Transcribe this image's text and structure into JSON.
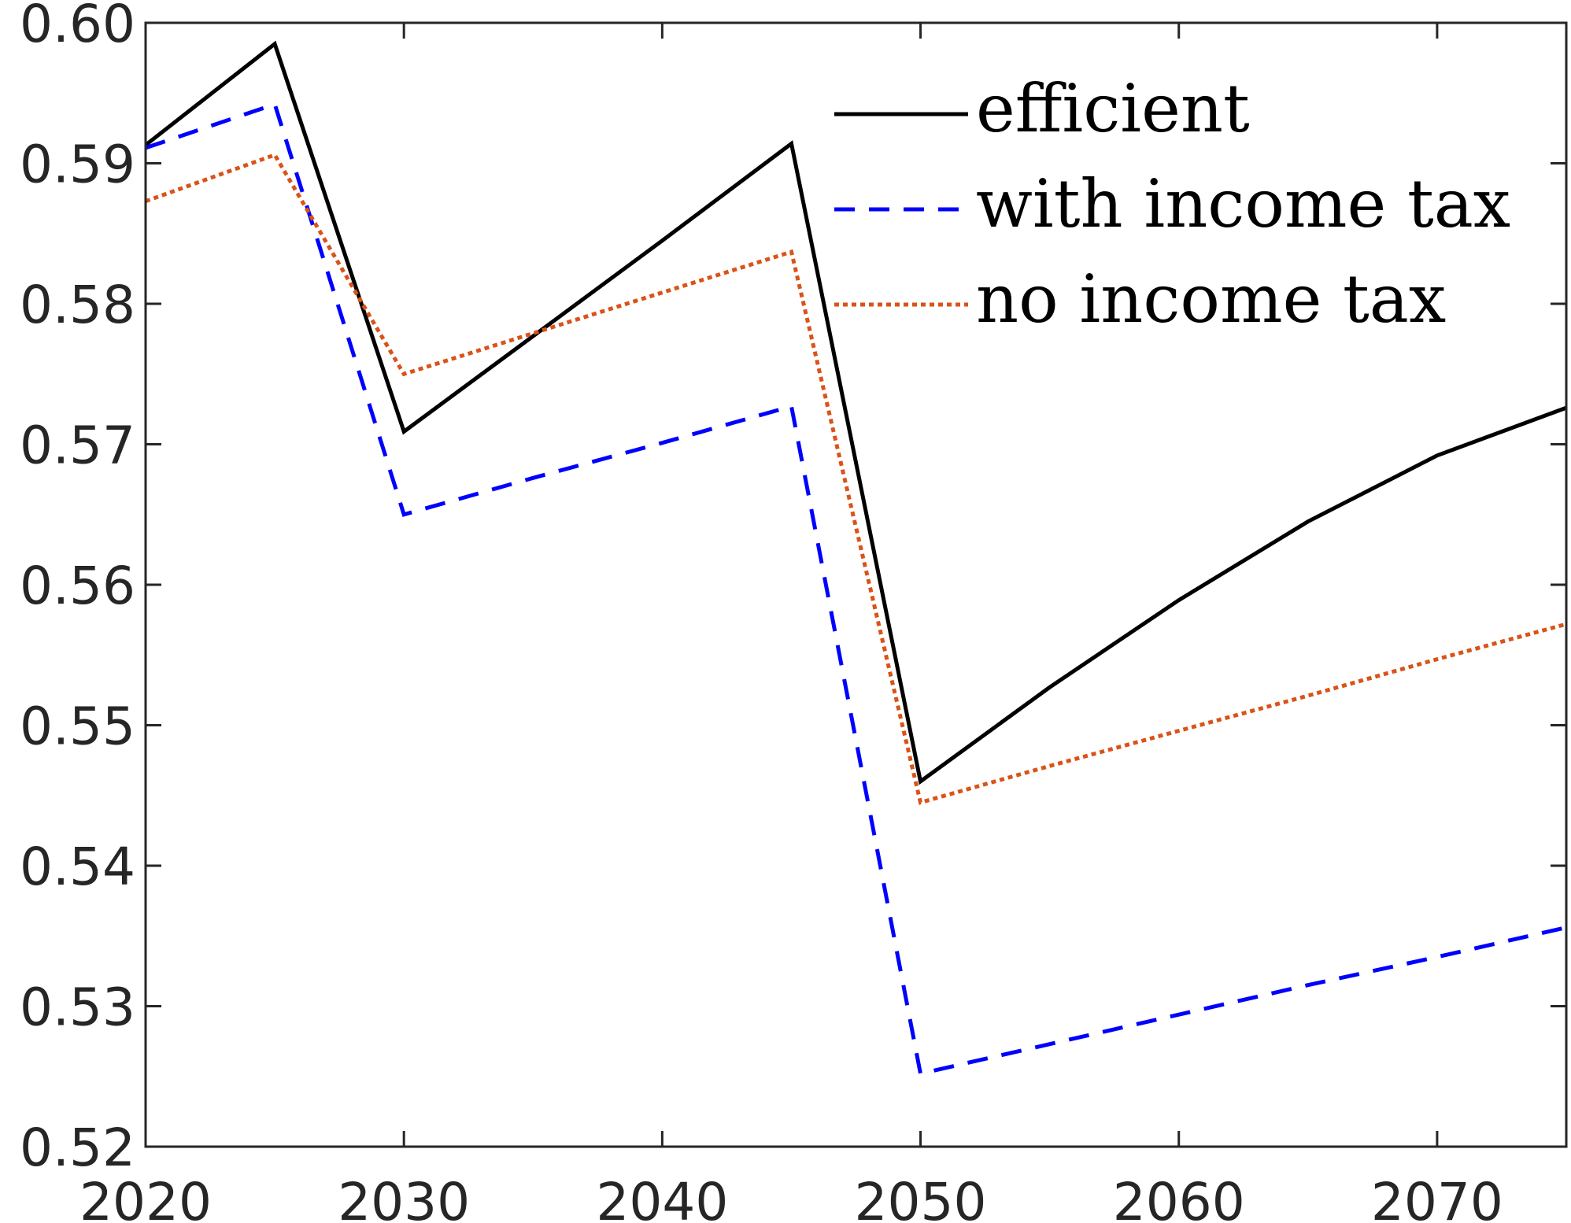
{
  "chart_data": {
    "type": "line",
    "title": "",
    "xlabel": "",
    "ylabel": "",
    "xlim": [
      2020,
      2075
    ],
    "ylim": [
      0.52,
      0.6
    ],
    "xticks": [
      2020,
      2030,
      2040,
      2050,
      2060,
      2070
    ],
    "xtick_labels": [
      "2020",
      "2030",
      "2040",
      "2050",
      "2060",
      "2070"
    ],
    "yticks": [
      0.52,
      0.53,
      0.54,
      0.55,
      0.56,
      0.57,
      0.58,
      0.59,
      0.6
    ],
    "ytick_labels": [
      "0.52",
      "0.53",
      "0.54",
      "0.55",
      "0.56",
      "0.57",
      "0.58",
      "0.59",
      "0.60"
    ],
    "grid": false,
    "legend_position": "top-right",
    "x": [
      2020,
      2025,
      2030,
      2035,
      2040,
      2045,
      2050,
      2055,
      2060,
      2065,
      2070,
      2075
    ],
    "series": [
      {
        "name": "efficient",
        "color": "#000000",
        "style": "solid",
        "values": [
          0.5913,
          0.5985,
          0.5709,
          0.5777,
          0.5845,
          0.5914,
          0.546,
          0.5527,
          0.5589,
          0.5645,
          0.5692,
          0.5726
        ]
      },
      {
        "name": "with income tax",
        "color": "#0000ff",
        "style": "dashed",
        "values": [
          0.5911,
          0.5942,
          0.565,
          0.5676,
          0.5701,
          0.5727,
          0.5252,
          0.5273,
          0.5294,
          0.5315,
          0.5335,
          0.5356
        ]
      },
      {
        "name": "no income tax",
        "color": "#d95319",
        "style": "dotted",
        "values": [
          0.5873,
          0.5906,
          0.575,
          0.5779,
          0.5808,
          0.5837,
          0.5445,
          0.5471,
          0.5496,
          0.5521,
          0.5547,
          0.5572
        ]
      }
    ]
  }
}
